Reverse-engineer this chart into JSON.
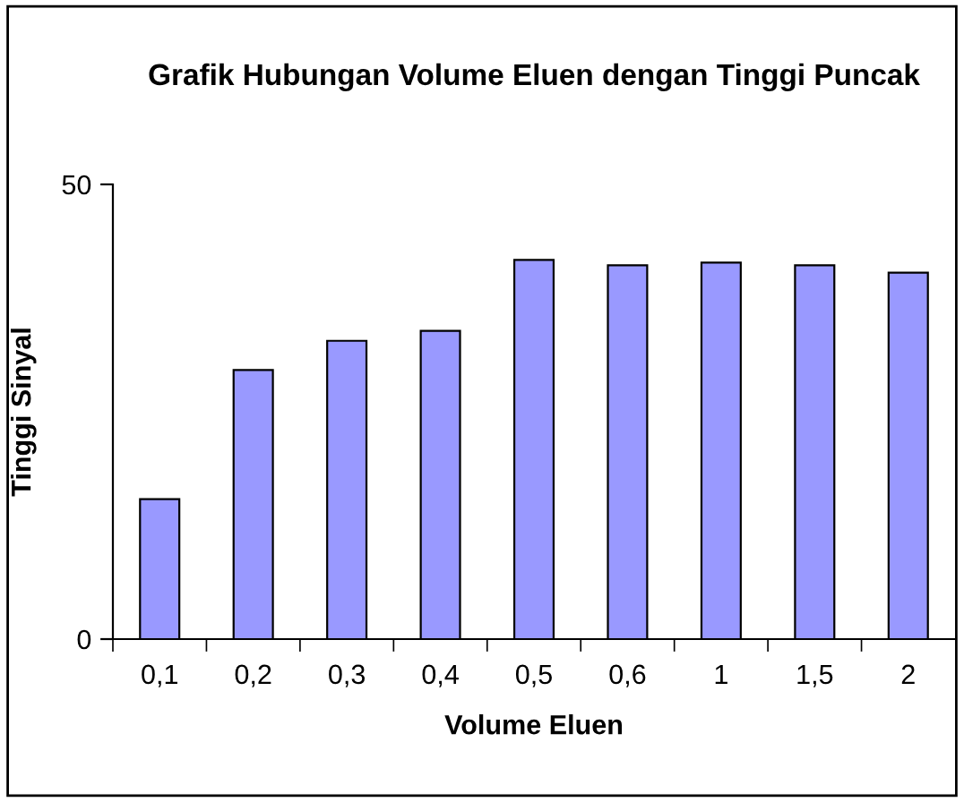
{
  "chart_data": {
    "type": "bar",
    "title": "Grafik Hubungan Volume Eluen dengan Tinggi Puncak",
    "xlabel": "Volume Eluen",
    "ylabel": "Tinggi Sinyal",
    "categories": [
      "0,1",
      "0,2",
      "0,3",
      "0,4",
      "0,5",
      "0,6",
      "1",
      "1,5",
      "2"
    ],
    "values": [
      15.4,
      29.6,
      32.8,
      33.9,
      41.7,
      41.1,
      41.4,
      41.1,
      40.3
    ],
    "color": "#9999ff",
    "ylim": [
      0,
      50
    ],
    "yticks": [
      0,
      50
    ],
    "grid": false,
    "legend": false
  }
}
